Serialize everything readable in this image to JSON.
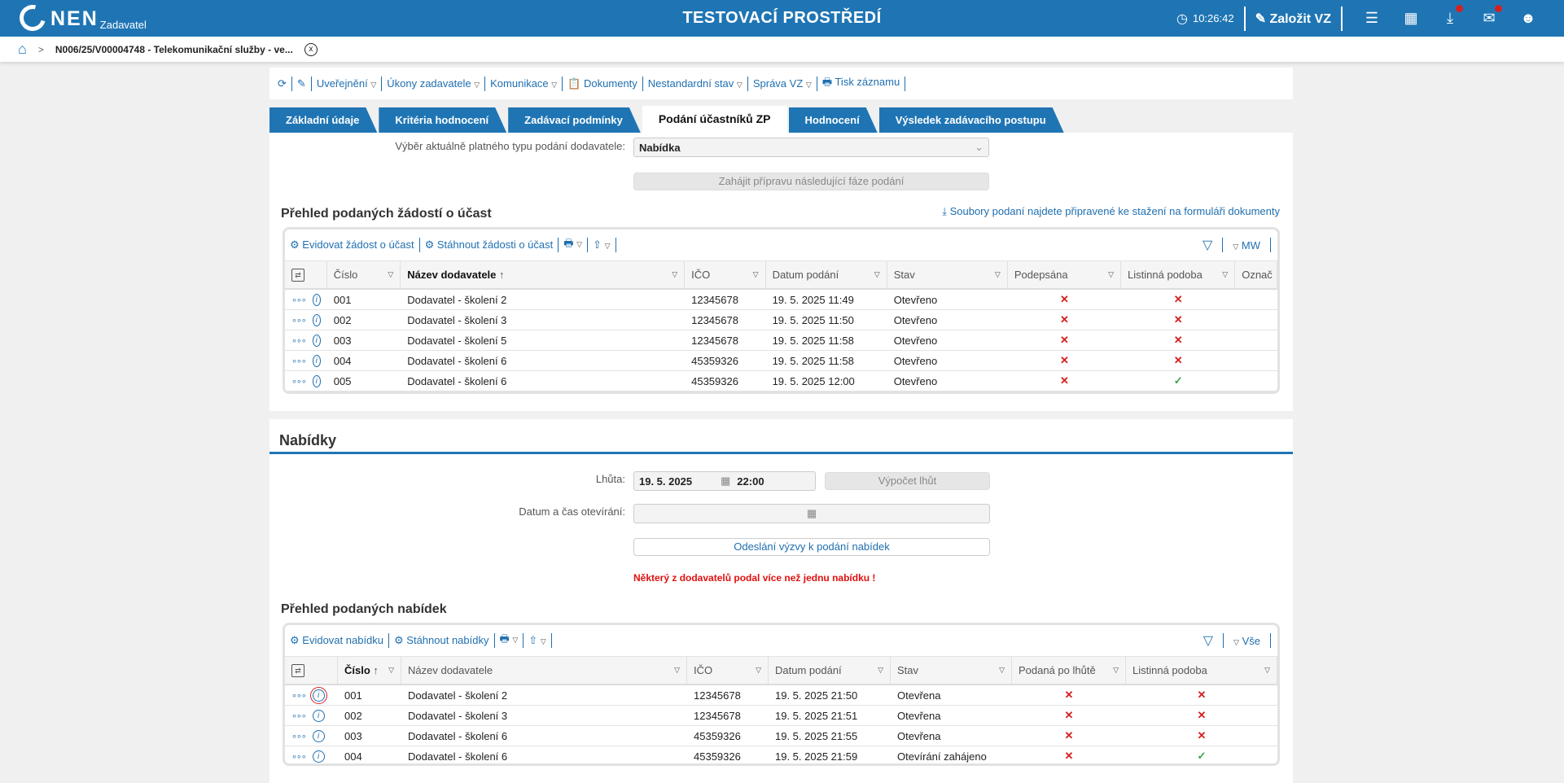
{
  "header": {
    "logo": "NEN",
    "logo_sub": "Zadavatel",
    "env_title": "TESTOVACÍ PROSTŘEDÍ",
    "time": "10:26:42",
    "create_label": "Založit VZ",
    "icons": [
      "menu-icon",
      "calendar-icon",
      "download-icon",
      "mail-icon",
      "user-icon"
    ]
  },
  "breadcrumb": {
    "title": "N006/25/V00004748 - Telekomunikační služby - ve..."
  },
  "toolbar": {
    "items": [
      "Uveřejnění",
      "Úkony zadavatele",
      "Komunikace",
      "Dokumenty",
      "Nestandardní stav",
      "Správa VZ",
      "Tisk záznamu"
    ]
  },
  "tabs": [
    "Základní údaje",
    "Kritéria hodnocení",
    "Zadávací podmínky",
    "Podání účastníků ZP",
    "Hodnocení",
    "Výsledek zadávacího postupu"
  ],
  "active_tab": "Podání účastníků ZP",
  "submission_type": {
    "label": "Výběr aktuálně platného typu podání dodavatele:",
    "value": "Nabídka",
    "next_phase_button": "Zahájit přípravu následující fáze podání"
  },
  "requests": {
    "title": "Přehled podaných žádostí o účast",
    "files_link": "Soubory podaní najdete připravené ke stažení na formuláři dokumenty",
    "register_button": "Evidovat žádost o účast",
    "download_button": "Stáhnout žádosti o účast",
    "view_label": "MW",
    "columns": [
      "Číslo",
      "Název dodavatele",
      "IČO",
      "Datum podání",
      "Stav",
      "Podepsána",
      "Listinná podoba",
      "Označ"
    ],
    "rows": [
      {
        "num": "001",
        "name": "Dodavatel - školení 2",
        "ico": "12345678",
        "date": "19. 5. 2025 11:49",
        "state": "Otevřeno",
        "signed": false,
        "paper": false
      },
      {
        "num": "002",
        "name": "Dodavatel - školení 3",
        "ico": "12345678",
        "date": "19. 5. 2025 11:50",
        "state": "Otevřeno",
        "signed": false,
        "paper": false
      },
      {
        "num": "003",
        "name": "Dodavatel - školení 5",
        "ico": "12345678",
        "date": "19. 5. 2025 11:58",
        "state": "Otevřeno",
        "signed": false,
        "paper": false
      },
      {
        "num": "004",
        "name": "Dodavatel - školení 6",
        "ico": "45359326",
        "date": "19. 5. 2025 11:58",
        "state": "Otevřeno",
        "signed": false,
        "paper": false
      },
      {
        "num": "005",
        "name": "Dodavatel - školení 6",
        "ico": "45359326",
        "date": "19. 5. 2025 12:00",
        "state": "Otevřeno",
        "signed": false,
        "paper": true
      }
    ]
  },
  "offers": {
    "section_title": "Nabídky",
    "deadline_label": "Lhůta:",
    "deadline_date": "19. 5. 2025",
    "deadline_time": "22:00",
    "calc_button": "Výpočet lhůt",
    "opening_label": "Datum a čas otevírání:",
    "opening_value": "",
    "send_button": "Odeslání výzvy k podání nabídek",
    "warning": "Některý z dodavatelů podal více než jednu nabídku !",
    "title": "Přehled podaných nabídek",
    "register_button": "Evidovat nabídku",
    "download_button": "Stáhnout nabídky",
    "view_label": "Vše",
    "columns": [
      "Číslo",
      "Název dodavatele",
      "IČO",
      "Datum podání",
      "Stav",
      "Podaná po lhůtě",
      "Listinná podoba"
    ],
    "rows": [
      {
        "num": "001",
        "name": "Dodavatel - školení 2",
        "ico": "12345678",
        "date": "19. 5. 2025 21:50",
        "state": "Otevřena",
        "late": false,
        "paper": false
      },
      {
        "num": "002",
        "name": "Dodavatel - školení 3",
        "ico": "12345678",
        "date": "19. 5. 2025 21:51",
        "state": "Otevřena",
        "late": false,
        "paper": false
      },
      {
        "num": "003",
        "name": "Dodavatel - školení 6",
        "ico": "45359326",
        "date": "19. 5. 2025 21:55",
        "state": "Otevřena",
        "late": false,
        "paper": false
      },
      {
        "num": "004",
        "name": "Dodavatel - školení 6",
        "ico": "45359326",
        "date": "19. 5. 2025 21:59",
        "state": "Otevírání zahájeno",
        "late": false,
        "paper": true
      }
    ]
  },
  "colors": {
    "brand": "#1f75b4",
    "error": "#d42020",
    "ok": "#3aa34a"
  }
}
